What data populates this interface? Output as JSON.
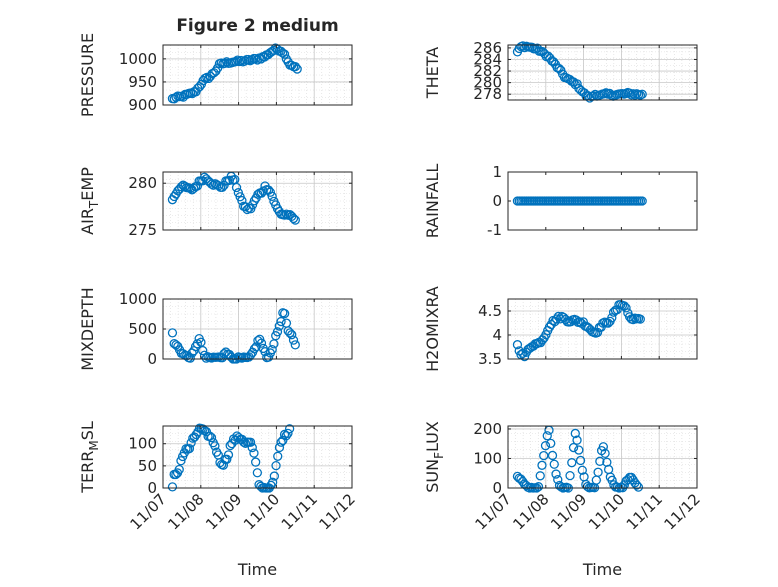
{
  "figure": {
    "marker_color": "#0072BD",
    "grid_color": "#d9d9d9",
    "axes_color": "#262626"
  },
  "chart_data": [
    {
      "id": "pressure",
      "type": "scatter",
      "title": "Figure 2 medium",
      "ylabel": "PRESSURE",
      "ylim": [
        900,
        1030
      ],
      "yticks": [
        900,
        950,
        1000
      ],
      "xlim": [
        0,
        5
      ],
      "xticks": [
        "11/07",
        "11/08",
        "11/09",
        "11/10",
        "11/11",
        "11/12"
      ],
      "xtick_labels_visible": false,
      "grid": true,
      "keypoints": [
        [
          0.25,
          913
        ],
        [
          0.35,
          916
        ],
        [
          0.5,
          918
        ],
        [
          0.6,
          921
        ],
        [
          0.75,
          925
        ],
        [
          0.85,
          928
        ],
        [
          1.0,
          945
        ],
        [
          1.1,
          955
        ],
        [
          1.25,
          962
        ],
        [
          1.4,
          975
        ],
        [
          1.5,
          988
        ],
        [
          1.7,
          992
        ],
        [
          1.9,
          994
        ],
        [
          2.1,
          995
        ],
        [
          2.3,
          997
        ],
        [
          2.5,
          1000
        ],
        [
          2.7,
          1005
        ],
        [
          2.85,
          1015
        ],
        [
          3.0,
          1022
        ],
        [
          3.15,
          1017
        ],
        [
          3.25,
          1005
        ],
        [
          3.35,
          988
        ],
        [
          3.45,
          985
        ],
        [
          3.55,
          978
        ]
      ],
      "noise": 3
    },
    {
      "id": "theta",
      "type": "scatter",
      "ylabel": "THETA",
      "ylim": [
        277,
        286.5
      ],
      "yticks": [
        278,
        280,
        282,
        284,
        286
      ],
      "xlim": [
        0,
        5
      ],
      "xticks": [
        "11/07",
        "11/08",
        "11/09",
        "11/10",
        "11/11",
        "11/12"
      ],
      "xtick_labels_visible": false,
      "grid": true,
      "keypoints": [
        [
          0.25,
          285.3
        ],
        [
          0.35,
          286.2
        ],
        [
          0.45,
          286.3
        ],
        [
          0.6,
          286.1
        ],
        [
          0.75,
          285.8
        ],
        [
          0.85,
          285.5
        ],
        [
          0.95,
          285.0
        ],
        [
          1.05,
          284.6
        ],
        [
          1.2,
          283.5
        ],
        [
          1.35,
          282.3
        ],
        [
          1.5,
          281.0
        ],
        [
          1.65,
          280.3
        ],
        [
          1.8,
          279.8
        ],
        [
          1.9,
          279.0
        ],
        [
          2.0,
          278.2
        ],
        [
          2.1,
          277.6
        ],
        [
          2.2,
          277.4
        ],
        [
          2.3,
          278.0
        ],
        [
          2.45,
          277.8
        ],
        [
          2.6,
          278.0
        ],
        [
          2.8,
          277.9
        ],
        [
          3.0,
          278.0
        ],
        [
          3.2,
          278.1
        ],
        [
          3.4,
          278.0
        ],
        [
          3.55,
          277.9
        ]
      ],
      "noise": 0.25
    },
    {
      "id": "air-temp",
      "type": "scatter",
      "ylabel": "AIR_TEMP",
      "ylim": [
        275,
        281.2
      ],
      "yticks": [
        275,
        280
      ],
      "xlim": [
        0,
        5
      ],
      "xticks": [
        "11/07",
        "11/08",
        "11/09",
        "11/10",
        "11/11",
        "11/12"
      ],
      "xtick_labels_visible": false,
      "grid": true,
      "keypoints": [
        [
          0.25,
          278.3
        ],
        [
          0.35,
          279.0
        ],
        [
          0.45,
          279.6
        ],
        [
          0.6,
          279.6
        ],
        [
          0.7,
          279.3
        ],
        [
          0.8,
          279.4
        ],
        [
          0.9,
          279.8
        ],
        [
          1.0,
          280.3
        ],
        [
          1.1,
          280.6
        ],
        [
          1.2,
          280.4
        ],
        [
          1.3,
          280.0
        ],
        [
          1.4,
          279.8
        ],
        [
          1.5,
          279.6
        ],
        [
          1.6,
          279.7
        ],
        [
          1.7,
          280.3
        ],
        [
          1.8,
          280.6
        ],
        [
          1.9,
          280.2
        ],
        [
          2.0,
          279.0
        ],
        [
          2.1,
          277.8
        ],
        [
          2.2,
          277.3
        ],
        [
          2.3,
          277.2
        ],
        [
          2.4,
          277.9
        ],
        [
          2.5,
          278.7
        ],
        [
          2.6,
          279.0
        ],
        [
          2.7,
          279.6
        ],
        [
          2.8,
          279.4
        ],
        [
          2.9,
          278.5
        ],
        [
          3.0,
          277.4
        ],
        [
          3.1,
          276.8
        ],
        [
          3.2,
          276.6
        ],
        [
          3.3,
          276.7
        ],
        [
          3.4,
          276.3
        ],
        [
          3.5,
          276.1
        ]
      ],
      "noise": 0.2
    },
    {
      "id": "rainfall",
      "type": "scatter",
      "ylabel": "RAINFALL",
      "ylim": [
        -1,
        1
      ],
      "yticks": [
        -1,
        0,
        1
      ],
      "xlim": [
        0,
        5
      ],
      "xticks": [
        "11/07",
        "11/08",
        "11/09",
        "11/10",
        "11/11",
        "11/12"
      ],
      "xtick_labels_visible": false,
      "grid": false,
      "keypoints": [
        [
          0.25,
          0
        ],
        [
          3.55,
          0
        ]
      ],
      "noise": 0
    },
    {
      "id": "mixdepth",
      "type": "scatter",
      "ylabel": "MIXDEPTH",
      "ylim": [
        0,
        1000
      ],
      "yticks": [
        0,
        500,
        1000
      ],
      "xlim": [
        0,
        5
      ],
      "xticks": [
        "11/07",
        "11/08",
        "11/09",
        "11/10",
        "11/11",
        "11/12"
      ],
      "xtick_labels_visible": false,
      "grid": true,
      "keypoints": [
        [
          0.25,
          420
        ],
        [
          0.3,
          250
        ],
        [
          0.4,
          200
        ],
        [
          0.5,
          100
        ],
        [
          0.6,
          50
        ],
        [
          0.7,
          20
        ],
        [
          0.8,
          100
        ],
        [
          0.9,
          250
        ],
        [
          0.97,
          380
        ],
        [
          1.05,
          120
        ],
        [
          1.15,
          10
        ],
        [
          1.3,
          20
        ],
        [
          1.45,
          30
        ],
        [
          1.55,
          5
        ],
        [
          1.65,
          150
        ],
        [
          1.75,
          60
        ],
        [
          1.85,
          10
        ],
        [
          2.0,
          10
        ],
        [
          2.15,
          10
        ],
        [
          2.3,
          20
        ],
        [
          2.45,
          200
        ],
        [
          2.55,
          350
        ],
        [
          2.65,
          180
        ],
        [
          2.75,
          20
        ],
        [
          2.85,
          100
        ],
        [
          2.95,
          300
        ],
        [
          3.05,
          500
        ],
        [
          3.15,
          700
        ],
        [
          3.2,
          820
        ],
        [
          3.25,
          650
        ],
        [
          3.3,
          450
        ],
        [
          3.4,
          400
        ],
        [
          3.5,
          250
        ]
      ],
      "noise": 25
    },
    {
      "id": "h2omixra",
      "type": "scatter",
      "ylabel": "H2OMIXRA",
      "ylim": [
        3.5,
        4.75
      ],
      "yticks": [
        3.5,
        4,
        4.5
      ],
      "xlim": [
        0,
        5
      ],
      "xticks": [
        "11/07",
        "11/08",
        "11/09",
        "11/10",
        "11/11",
        "11/12"
      ],
      "xtick_labels_visible": false,
      "grid": true,
      "keypoints": [
        [
          0.25,
          3.78
        ],
        [
          0.35,
          3.62
        ],
        [
          0.45,
          3.55
        ],
        [
          0.55,
          3.72
        ],
        [
          0.65,
          3.8
        ],
        [
          0.8,
          3.82
        ],
        [
          0.95,
          3.95
        ],
        [
          1.1,
          4.2
        ],
        [
          1.25,
          4.32
        ],
        [
          1.4,
          4.38
        ],
        [
          1.6,
          4.3
        ],
        [
          1.8,
          4.3
        ],
        [
          2.0,
          4.25
        ],
        [
          2.15,
          4.15
        ],
        [
          2.25,
          4.05
        ],
        [
          2.4,
          4.1
        ],
        [
          2.5,
          4.25
        ],
        [
          2.6,
          4.22
        ],
        [
          2.7,
          4.32
        ],
        [
          2.8,
          4.45
        ],
        [
          2.9,
          4.55
        ],
        [
          3.0,
          4.67
        ],
        [
          3.1,
          4.6
        ],
        [
          3.2,
          4.4
        ],
        [
          3.3,
          4.3
        ],
        [
          3.4,
          4.38
        ],
        [
          3.5,
          4.3
        ]
      ],
      "noise": 0.04
    },
    {
      "id": "terr-msl",
      "type": "scatter",
      "ylabel": "TERR_MSL",
      "ylim": [
        0,
        140
      ],
      "yticks": [
        0,
        50,
        100
      ],
      "xlim": [
        0,
        5
      ],
      "xticks": [
        "11/07",
        "11/08",
        "11/09",
        "11/10",
        "11/11",
        "11/12"
      ],
      "xtick_labels_visible": true,
      "xlabel": "Time",
      "grid": true,
      "keypoints": [
        [
          0.25,
          0
        ],
        [
          0.3,
          30
        ],
        [
          0.4,
          35
        ],
        [
          0.5,
          70
        ],
        [
          0.6,
          85
        ],
        [
          0.7,
          90
        ],
        [
          0.8,
          110
        ],
        [
          0.9,
          125
        ],
        [
          1.0,
          135
        ],
        [
          1.1,
          125
        ],
        [
          1.2,
          120
        ],
        [
          1.3,
          110
        ],
        [
          1.4,
          90
        ],
        [
          1.5,
          60
        ],
        [
          1.6,
          55
        ],
        [
          1.7,
          70
        ],
        [
          1.8,
          100
        ],
        [
          1.9,
          110
        ],
        [
          2.0,
          115
        ],
        [
          2.1,
          110
        ],
        [
          2.2,
          100
        ],
        [
          2.3,
          105
        ],
        [
          2.4,
          80
        ],
        [
          2.5,
          30
        ],
        [
          2.55,
          5
        ],
        [
          2.6,
          0
        ],
        [
          2.7,
          0
        ],
        [
          2.85,
          0
        ],
        [
          2.95,
          25
        ],
        [
          3.05,
          80
        ],
        [
          3.15,
          110
        ],
        [
          3.25,
          120
        ],
        [
          3.35,
          135
        ]
      ],
      "noise": 5
    },
    {
      "id": "sun-flux",
      "type": "scatter",
      "ylabel": "SUN_FLUX",
      "ylim": [
        0,
        210
      ],
      "yticks": [
        0,
        100,
        200
      ],
      "xlim": [
        0,
        5
      ],
      "xticks": [
        "11/07",
        "11/08",
        "11/09",
        "11/10",
        "11/11",
        "11/12"
      ],
      "xtick_labels_visible": true,
      "xlabel": "Time",
      "grid": true,
      "keypoints": [
        [
          0.25,
          40
        ],
        [
          0.35,
          30
        ],
        [
          0.45,
          10
        ],
        [
          0.55,
          0
        ],
        [
          0.7,
          0
        ],
        [
          0.8,
          0
        ],
        [
          0.9,
          80
        ],
        [
          1.0,
          150
        ],
        [
          1.08,
          200
        ],
        [
          1.15,
          130
        ],
        [
          1.25,
          60
        ],
        [
          1.35,
          10
        ],
        [
          1.45,
          0
        ],
        [
          1.6,
          0
        ],
        [
          1.7,
          100
        ],
        [
          1.78,
          185
        ],
        [
          1.85,
          150
        ],
        [
          1.95,
          70
        ],
        [
          2.05,
          15
        ],
        [
          2.15,
          0
        ],
        [
          2.3,
          0
        ],
        [
          2.42,
          80
        ],
        [
          2.5,
          150
        ],
        [
          2.58,
          110
        ],
        [
          2.7,
          40
        ],
        [
          2.8,
          10
        ],
        [
          2.9,
          0
        ],
        [
          3.05,
          0
        ],
        [
          3.15,
          30
        ],
        [
          3.25,
          35
        ],
        [
          3.35,
          20
        ],
        [
          3.45,
          5
        ]
      ],
      "noise": 3
    }
  ]
}
